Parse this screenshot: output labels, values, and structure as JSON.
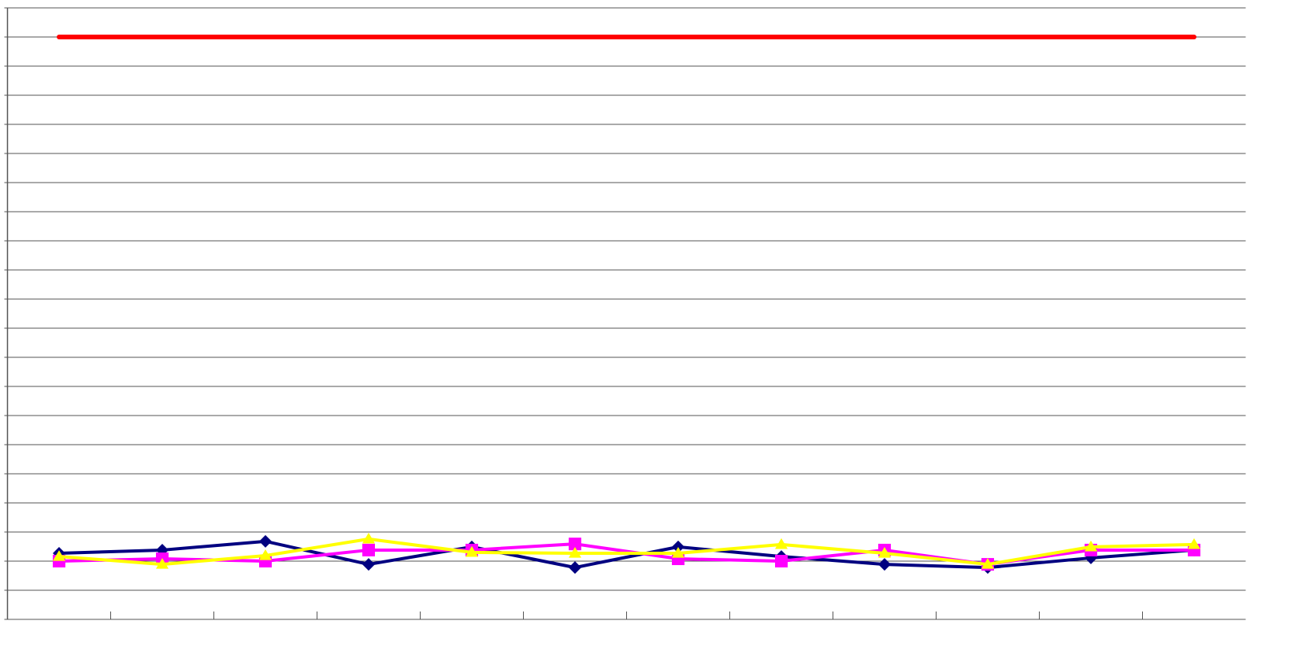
{
  "chart_data": {
    "type": "line",
    "categories": [
      null,
      null,
      null,
      null,
      null,
      null,
      null,
      null,
      null,
      null,
      null,
      null
    ],
    "series": [
      {
        "color": "#ff0000",
        "marker": "none",
        "values": [
          20,
          20,
          20,
          20,
          20,
          20,
          20,
          20,
          20,
          20,
          20,
          20
        ]
      },
      {
        "color": "#000080",
        "marker": "diamond",
        "values": [
          2.27,
          2.38,
          2.68,
          1.89,
          2.49,
          1.78,
          2.49,
          2.16,
          1.89,
          1.78,
          2.11,
          2.38
        ]
      },
      {
        "color": "#ff00ff",
        "marker": "square",
        "values": [
          2.0,
          2.08,
          2.0,
          2.38,
          2.38,
          2.59,
          2.08,
          2.0,
          2.38,
          1.89,
          2.38,
          2.38
        ]
      },
      {
        "color": "#ffff00",
        "marker": "triangle",
        "values": [
          2.16,
          1.89,
          2.19,
          2.76,
          2.3,
          2.27,
          2.27,
          2.57,
          2.27,
          1.89,
          2.49,
          2.57
        ]
      }
    ],
    "ylim": [
      0,
      21
    ],
    "yticks": [
      0,
      1,
      2,
      3,
      4,
      5,
      6,
      7,
      8,
      9,
      10,
      11,
      12,
      13,
      14,
      15,
      16,
      17,
      18,
      19,
      20,
      21
    ],
    "grid": true
  }
}
